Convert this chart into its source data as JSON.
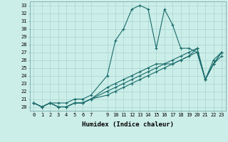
{
  "xlabel": "Humidex (Indice chaleur)",
  "bg_color": "#cceee8",
  "line_color": "#1a6b6b",
  "xlim": [
    -0.5,
    23.5
  ],
  "ylim": [
    19.5,
    33.5
  ],
  "xticks": [
    0,
    1,
    2,
    3,
    4,
    5,
    6,
    7,
    9,
    10,
    11,
    12,
    13,
    14,
    15,
    16,
    17,
    18,
    19,
    20,
    21,
    22,
    23
  ],
  "yticks": [
    20,
    21,
    22,
    23,
    24,
    25,
    26,
    27,
    28,
    29,
    30,
    31,
    32,
    33
  ],
  "series1_x": [
    0,
    1,
    2,
    3,
    4,
    5,
    6,
    7,
    9,
    10,
    11,
    12,
    13,
    14,
    15,
    16,
    17,
    18,
    19,
    20,
    21,
    22,
    23
  ],
  "series1_y": [
    20.5,
    20.0,
    20.5,
    20.5,
    20.5,
    21.0,
    21.0,
    21.5,
    24.0,
    28.5,
    30.0,
    32.5,
    33.0,
    32.5,
    27.5,
    32.5,
    30.5,
    27.5,
    27.5,
    27.0,
    23.5,
    25.5,
    27.0
  ],
  "series2_x": [
    0,
    1,
    2,
    3,
    4,
    5,
    6,
    7,
    9,
    10,
    11,
    12,
    13,
    14,
    15,
    16,
    17,
    18,
    19,
    20,
    21,
    22,
    23
  ],
  "series2_y": [
    20.5,
    20.0,
    20.5,
    20.0,
    20.0,
    20.5,
    20.5,
    21.0,
    22.5,
    23.0,
    23.5,
    24.0,
    24.5,
    25.0,
    25.5,
    25.5,
    26.0,
    26.5,
    27.0,
    27.5,
    23.5,
    25.5,
    27.0
  ],
  "series3_x": [
    0,
    1,
    2,
    3,
    4,
    5,
    6,
    7,
    9,
    10,
    11,
    12,
    13,
    14,
    15,
    16,
    17,
    18,
    19,
    20,
    21,
    22,
    23
  ],
  "series3_y": [
    20.5,
    20.0,
    20.5,
    20.0,
    20.0,
    20.5,
    20.5,
    21.0,
    22.0,
    22.5,
    23.0,
    23.5,
    24.0,
    24.5,
    25.0,
    25.5,
    25.5,
    26.0,
    26.5,
    27.5,
    23.5,
    26.0,
    27.0
  ],
  "series4_x": [
    0,
    1,
    2,
    3,
    4,
    5,
    6,
    7,
    9,
    10,
    11,
    12,
    13,
    14,
    15,
    16,
    17,
    18,
    19,
    20,
    21,
    22,
    23
  ],
  "series4_y": [
    20.5,
    20.0,
    20.5,
    20.0,
    20.0,
    20.5,
    20.5,
    21.0,
    21.5,
    22.0,
    22.5,
    23.0,
    23.5,
    24.0,
    24.5,
    25.0,
    25.5,
    26.0,
    26.5,
    27.0,
    23.5,
    25.5,
    26.5
  ],
  "font_size_ticks": 5,
  "font_size_xlabel": 6.5,
  "marker_size": 3,
  "line_width": 0.8
}
